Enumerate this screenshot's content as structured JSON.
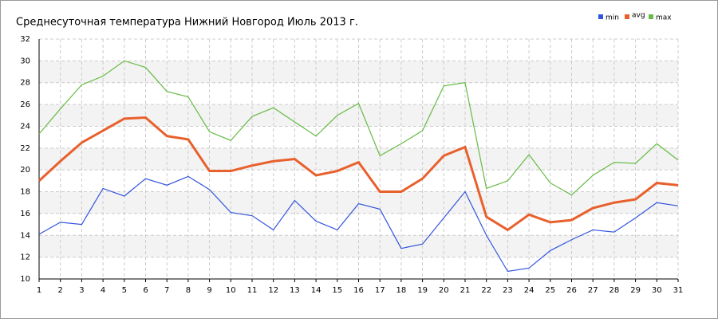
{
  "chart_data": {
    "type": "line",
    "title": "Среднесуточная температура Нижний Новгород  Июль 2013 г.",
    "categories": [
      "1",
      "2",
      "3",
      "4",
      "5",
      "6",
      "7",
      "8",
      "9",
      "10",
      "11",
      "12",
      "13",
      "14",
      "15",
      "16",
      "17",
      "18",
      "19",
      "20",
      "21",
      "22",
      "23",
      "24",
      "25",
      "26",
      "27",
      "28",
      "29",
      "30",
      "31"
    ],
    "series": [
      {
        "name": "min",
        "color": "#3355dd",
        "values": [
          14.1,
          15.2,
          15.0,
          18.3,
          17.6,
          19.2,
          18.6,
          19.4,
          18.2,
          16.1,
          15.8,
          14.5,
          17.2,
          15.3,
          14.5,
          16.9,
          16.4,
          12.8,
          13.2,
          15.6,
          18.0,
          14.0,
          10.7,
          11.0,
          12.6,
          13.6,
          14.5,
          14.3,
          15.6,
          17.0,
          16.7
        ]
      },
      {
        "name": "avg",
        "color": "#e8602c",
        "values": [
          19.0,
          20.8,
          22.5,
          23.6,
          24.7,
          24.8,
          23.1,
          22.8,
          19.9,
          19.9,
          20.4,
          20.8,
          21.0,
          19.5,
          19.9,
          20.7,
          18.0,
          18.0,
          19.2,
          21.3,
          22.1,
          15.7,
          14.5,
          15.9,
          15.2,
          15.4,
          16.5,
          17.0,
          17.3,
          18.8,
          18.6
        ]
      },
      {
        "name": "max",
        "color": "#66bb44",
        "values": [
          23.3,
          25.6,
          27.8,
          28.6,
          30.0,
          29.4,
          27.2,
          26.7,
          23.5,
          22.7,
          24.9,
          25.7,
          24.4,
          23.1,
          25.0,
          26.1,
          21.3,
          22.4,
          23.6,
          27.7,
          28.0,
          18.3,
          19.0,
          21.4,
          18.8,
          17.7,
          19.5,
          20.7,
          20.6,
          22.4,
          20.9
        ]
      }
    ],
    "ylim": [
      10,
      32
    ],
    "yticks": [
      10,
      12,
      14,
      16,
      18,
      20,
      22,
      24,
      26,
      28,
      30,
      32
    ],
    "grid": true
  }
}
